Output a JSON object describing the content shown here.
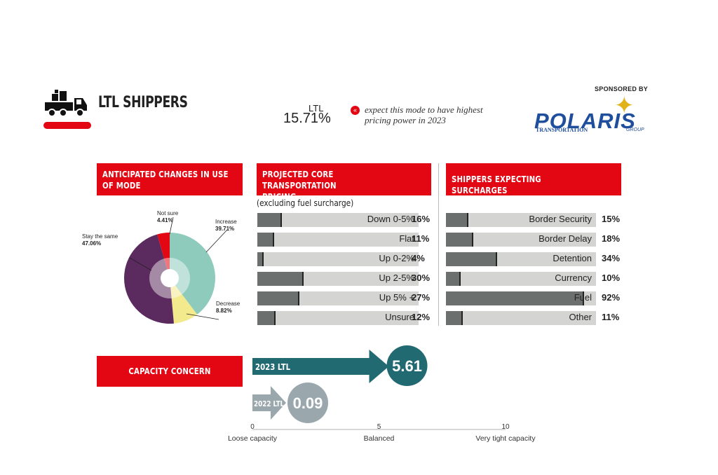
{
  "header": {
    "title": "LTL SHIPPERS",
    "mode_label": "LTL",
    "mode_value": "15.71%",
    "note": "expect this mode to have highest pricing power in 2023",
    "sponsored_by": "SPONSORED BY",
    "sponsor_name": "POLARIS",
    "sponsor_sub": "TRANSPORTATION",
    "sponsor_group": "GROUP"
  },
  "colors": {
    "red": "#e30613",
    "teal": "#216a72",
    "gray_blue": "#9aa8ad",
    "bar_fill": "#6b706f",
    "bar_bg": "#d4d4d2"
  },
  "chart_data": [
    {
      "type": "pie",
      "title": "ANTICIPATED CHANGES IN USE OF MODE",
      "slices": [
        {
          "label": "Increase",
          "value": 39.71,
          "value_label": "39.71%",
          "color": "#8ecbbd"
        },
        {
          "label": "Decrease",
          "value": 8.82,
          "value_label": "8.82%",
          "color": "#f3e98d"
        },
        {
          "label": "Stay the same",
          "value": 47.06,
          "value_label": "47.06%",
          "color": "#5b2a5e"
        },
        {
          "label": "Not sure",
          "value": 4.41,
          "value_label": "4.41%",
          "color": "#e30613"
        }
      ]
    },
    {
      "type": "bar",
      "title": "PROJECTED CORE TRANSPORTATION PRICING",
      "subtitle": "(excluding fuel surcharge)",
      "categories": [
        "Down 0-5%",
        "Flat",
        "Up 0-2%",
        "Up 2-5%",
        "Up 5% +",
        "Unsure"
      ],
      "values": [
        16,
        11,
        4,
        30,
        27,
        12
      ],
      "value_labels": [
        "16%",
        "11%",
        "4%",
        "30%",
        "27%",
        "12%"
      ],
      "xlim": [
        0,
        100
      ]
    },
    {
      "type": "bar",
      "title": "SHIPPERS EXPECTING SURCHARGES",
      "categories": [
        "Border Security",
        "Border Delay",
        "Detention",
        "Currency",
        "Fuel",
        "Other"
      ],
      "values": [
        15,
        18,
        34,
        10,
        92,
        11
      ],
      "value_labels": [
        "15%",
        "18%",
        "34%",
        "10%",
        "92%",
        "11%"
      ],
      "xlim": [
        0,
        100
      ]
    },
    {
      "type": "bar",
      "title": "CAPACITY CONCERN",
      "series": [
        {
          "name": "2023 LTL",
          "value": 5.61,
          "value_label": "5.61",
          "color": "#216a72"
        },
        {
          "name": "2022 LTL",
          "value": 0.09,
          "value_label": "0.09",
          "color": "#9aa8ad"
        }
      ],
      "xlim": [
        0,
        10
      ],
      "ticks": [
        "0",
        "5",
        "10"
      ],
      "tick_labels": [
        "Loose capacity",
        "Balanced",
        "Very tight capacity"
      ]
    }
  ]
}
